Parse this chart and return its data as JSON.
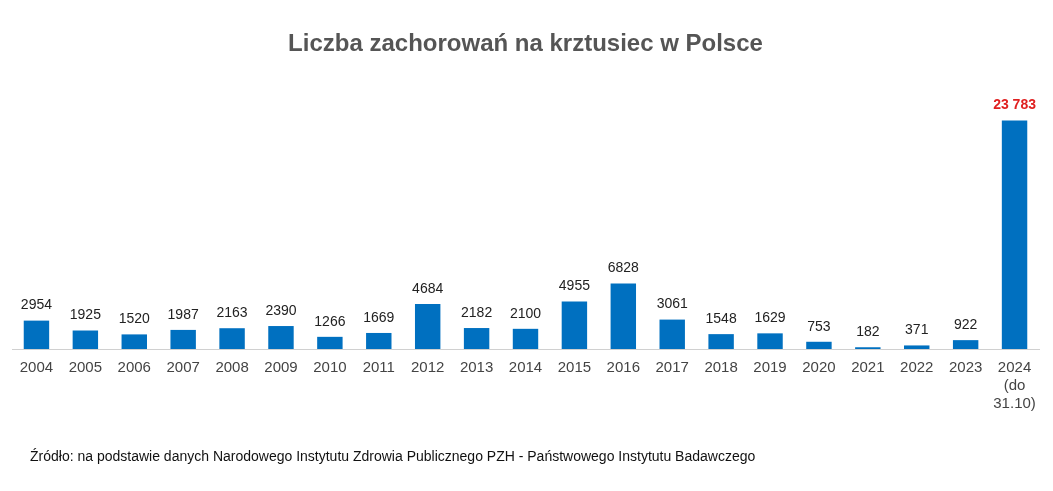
{
  "chart_data": {
    "type": "bar",
    "title": "Liczba zachorowań na krztusiec w Polsce",
    "categories": [
      "2004",
      "2005",
      "2006",
      "2007",
      "2008",
      "2009",
      "2010",
      "2011",
      "2012",
      "2013",
      "2014",
      "2015",
      "2016",
      "2017",
      "2018",
      "2019",
      "2020",
      "2021",
      "2022",
      "2023",
      "2024 (do 31.10)"
    ],
    "values": [
      2954,
      1925,
      1520,
      1987,
      2163,
      2390,
      1266,
      1669,
      4684,
      2182,
      2100,
      4955,
      6828,
      3061,
      1548,
      1629,
      753,
      182,
      371,
      922,
      23783
    ],
    "value_labels": [
      "2954",
      "1925",
      "1520",
      "1987",
      "2163",
      "2390",
      "1266",
      "1669",
      "4684",
      "2182",
      "2100",
      "4955",
      "6828",
      "3061",
      "1548",
      "1629",
      "753",
      "182",
      "371",
      "922",
      "23 783"
    ],
    "color": "#0070c0",
    "annotations": [
      "Źródło: na podstawie danych Narodowego Instytutu Zdrowia Publicznego PZH - Państwowego Instytutu Badawczego"
    ],
    "grid": false,
    "legend": false
  }
}
